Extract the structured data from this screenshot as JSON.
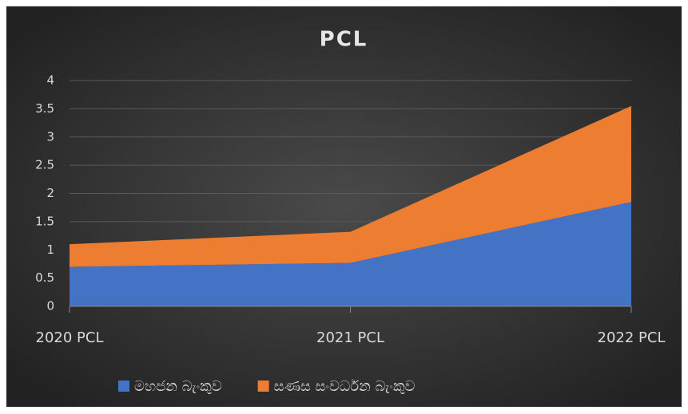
{
  "chart_data": {
    "type": "area",
    "stacked": true,
    "title": "PCL",
    "categories": [
      "2020 PCL",
      "2021 PCL",
      "2022 PCL"
    ],
    "series": [
      {
        "name": "මහජන බැංකුව",
        "color": "#4472c4",
        "values": [
          0.7,
          0.77,
          1.85
        ]
      },
      {
        "name": "සණස සංවර්ධන බැංකුව",
        "color": "#ed7d31",
        "values": [
          0.4,
          0.55,
          1.7
        ]
      }
    ],
    "ylim": [
      0,
      4
    ],
    "yticks": [
      0,
      0.5,
      1,
      1.5,
      2,
      2.5,
      3,
      3.5,
      4
    ],
    "grid": true,
    "legend": "bottom"
  }
}
